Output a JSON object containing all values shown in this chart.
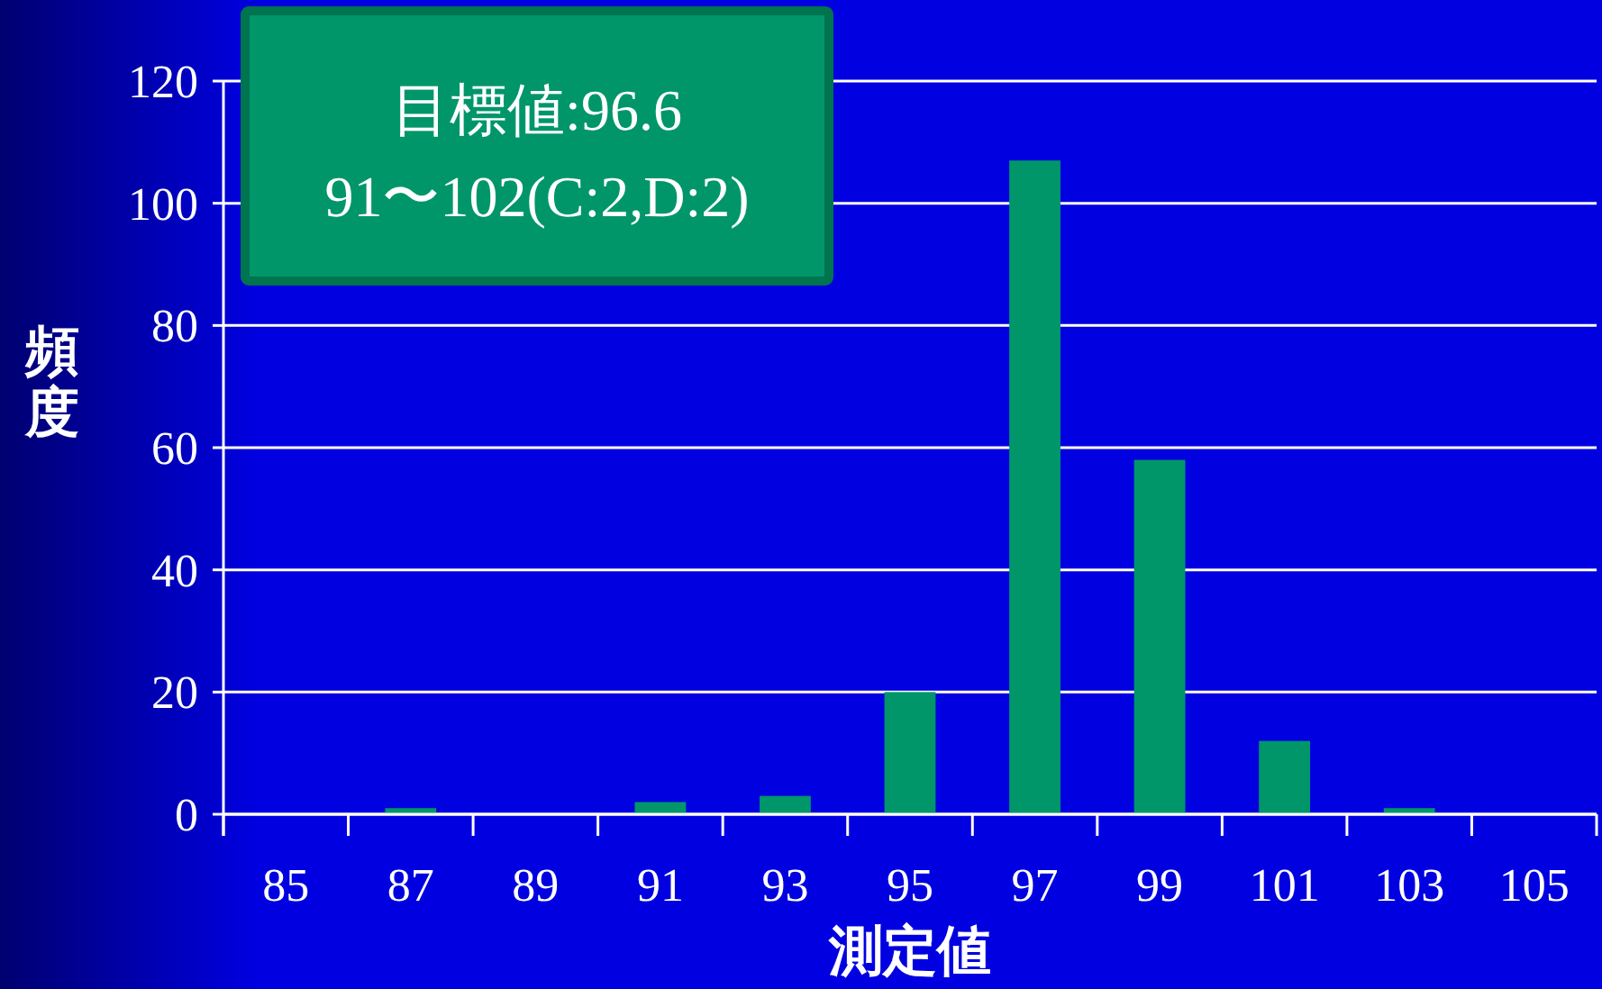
{
  "chart_data": {
    "type": "bar",
    "xlabel": "測定値",
    "ylabel": "頻度",
    "categories": [
      "85",
      "87",
      "89",
      "91",
      "93",
      "95",
      "97",
      "99",
      "101",
      "103",
      "105"
    ],
    "values": [
      0,
      1,
      0,
      2,
      3,
      20,
      107,
      58,
      12,
      1,
      0
    ],
    "color": "#00966a",
    "ylim": [
      0,
      120
    ],
    "yticks": [
      0,
      20,
      40,
      60,
      80,
      100,
      120
    ],
    "grid": "y",
    "annotations": [
      "目標値:96.6",
      "91〜102(C:2,D:2)"
    ]
  }
}
